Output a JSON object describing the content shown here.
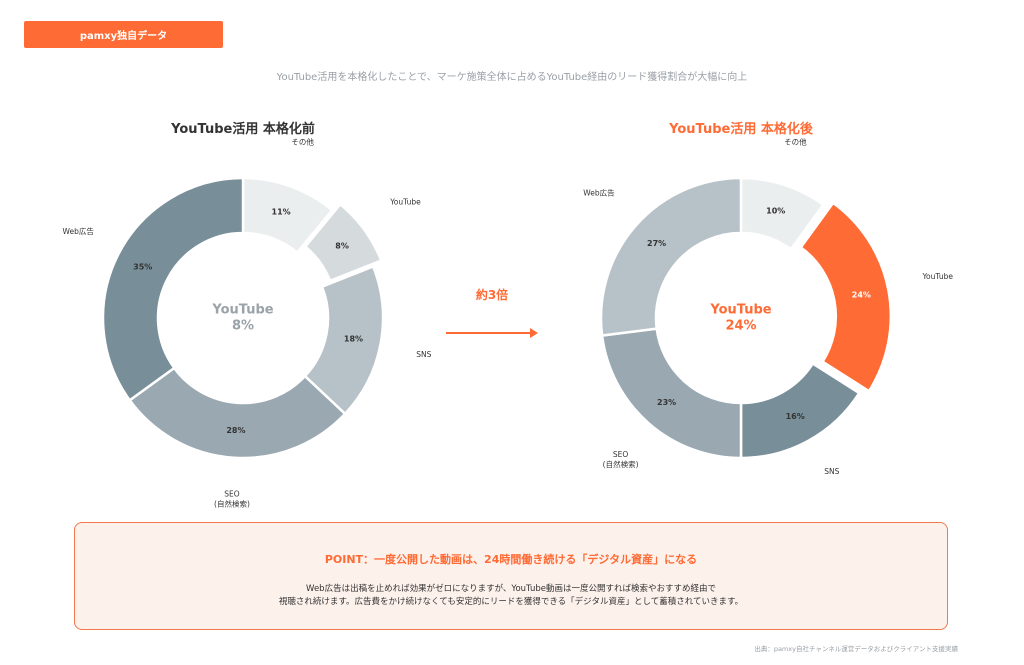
{
  "badge": "pamxy独自データ",
  "subtitle": "YouTube活用を本格化したことで、マーケ施策全体に占めるYouTube経由のリード獲得割合が大幅に向上",
  "multiplier": "約3倍",
  "colors": {
    "accent": "#ff6b35",
    "sonota": "#ebeeef",
    "youtube_before": "#d5dbdd",
    "sns": "#b7c2c8",
    "seo": "#99a8b1",
    "web": "#788e99",
    "web_after": "#b7c2c8",
    "sns_after": "#788e99"
  },
  "chart_data": [
    {
      "type": "pie",
      "title": "YouTube活用 本格化前",
      "center_label": "YouTube",
      "center_value": "8%",
      "slices": [
        {
          "name": "その他",
          "value": 11,
          "label": "11%",
          "color": "#ebeeef"
        },
        {
          "name": "YouTube",
          "value": 8,
          "label": "8%",
          "color": "#d5dbdd",
          "exploded": true
        },
        {
          "name": "SNS",
          "value": 18,
          "label": "18%",
          "color": "#b7c2c8"
        },
        {
          "name": "SEO\n(自然検索)",
          "value": 28,
          "label": "28%",
          "color": "#99a8b1"
        },
        {
          "name": "Web広告",
          "value": 35,
          "label": "35%",
          "color": "#788e99"
        }
      ]
    },
    {
      "type": "pie",
      "title": "YouTube活用 本格化後",
      "center_label": "YouTube",
      "center_value": "24%",
      "slices": [
        {
          "name": "その他",
          "value": 10,
          "label": "10%",
          "color": "#ebeeef"
        },
        {
          "name": "YouTube",
          "value": 24,
          "label": "24%",
          "color": "#ff6b35",
          "exploded": true
        },
        {
          "name": "SNS",
          "value": 16,
          "label": "16%",
          "color": "#788e99"
        },
        {
          "name": "SEO\n(自然検索)",
          "value": 23,
          "label": "23%",
          "color": "#99a8b1"
        },
        {
          "name": "Web広告",
          "value": 27,
          "label": "27%",
          "color": "#b7c2c8"
        }
      ]
    }
  ],
  "point": {
    "title": "POINT：一度公開した動画は、24時間働き続ける「デジタル資産」になる",
    "body_line1": "Web広告は出稿を止めれば効果がゼロになりますが、YouTube動画は一度公開すれば検索やおすすめ経由で",
    "body_line2": "視聴され続けます。広告費をかけ続けなくても安定的にリードを獲得できる「デジタル資産」として蓄積されていきます。"
  },
  "source": "出典：pamxy自社チャンネル運営データおよびクライアント支援実績"
}
